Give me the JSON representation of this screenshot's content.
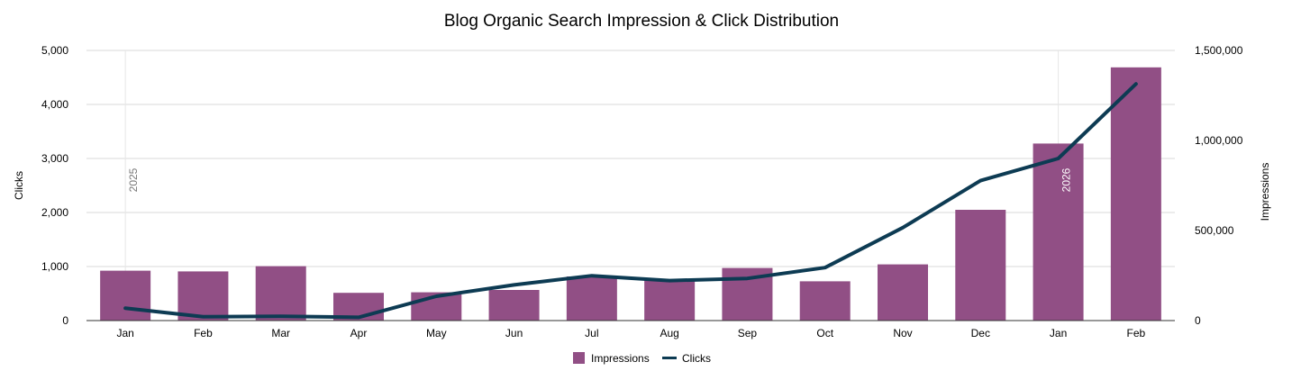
{
  "chart_data": {
    "type": "bar",
    "title": "Blog Organic Search Impression & Click Distribution",
    "categories": [
      "Jan",
      "Feb",
      "Mar",
      "Apr",
      "May",
      "Jun",
      "Jul",
      "Aug",
      "Sep",
      "Oct",
      "Nov",
      "Dec",
      "Jan",
      "Feb"
    ],
    "year_markers": [
      {
        "category_index": 0,
        "label": "2025"
      },
      {
        "category_index": 12,
        "label": "2026"
      }
    ],
    "series": [
      {
        "name": "Impressions",
        "type": "bar",
        "axis": "right",
        "color": "#914f85",
        "values": [
          277000,
          273000,
          302000,
          154000,
          157000,
          170000,
          245000,
          230000,
          292000,
          218000,
          312000,
          615000,
          983000,
          1406000
        ]
      },
      {
        "name": "Clicks",
        "type": "line",
        "axis": "left",
        "color": "#0d3b53",
        "values": [
          230,
          70,
          80,
          60,
          450,
          660,
          830,
          740,
          780,
          980,
          1720,
          2590,
          3000,
          4380
        ]
      }
    ],
    "y_left": {
      "label": "Clicks",
      "min": 0,
      "max": 5000,
      "ticks": [
        0,
        1000,
        2000,
        3000,
        4000,
        5000
      ],
      "tick_labels": [
        "0",
        "1,000",
        "2,000",
        "3,000",
        "4,000",
        "5,000"
      ]
    },
    "y_right": {
      "label": "Impressions",
      "min": 0,
      "max": 1500000,
      "ticks": [
        0,
        500000,
        1000000,
        1500000
      ],
      "tick_labels": [
        "0",
        "500,000",
        "1,000,000",
        "1,500,000"
      ]
    },
    "grid": true,
    "legend_position": "bottom"
  }
}
